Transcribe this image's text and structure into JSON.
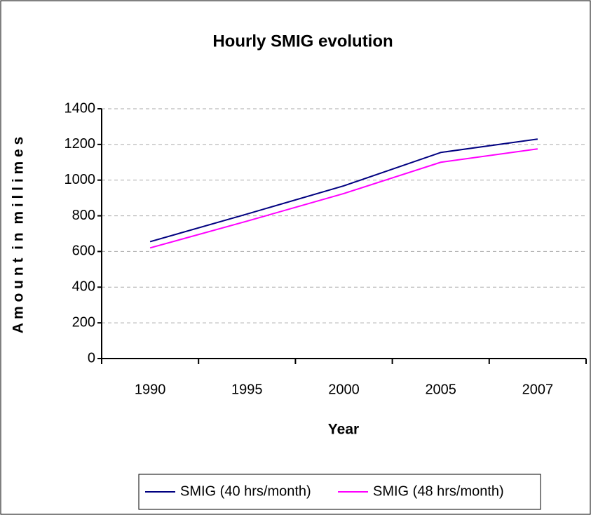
{
  "chart_data": {
    "type": "line",
    "title": "Hourly SMIG evolution",
    "x_label": "Year",
    "y_label": "A m o u n t  i n  m i l l i m e s",
    "categories": [
      "1990",
      "1995",
      "2000",
      "2005",
      "2007"
    ],
    "series": [
      {
        "name": "SMIG (40 hrs/month)",
        "color": "#000080",
        "values": [
          655,
          810,
          968,
          1155,
          1230
        ]
      },
      {
        "name": "SMIG (48 hrs/month)",
        "color": "#ff00ff",
        "values": [
          620,
          770,
          925,
          1100,
          1175
        ]
      }
    ],
    "ylim": [
      0,
      1400
    ],
    "yticks": [
      0,
      200,
      400,
      600,
      800,
      1000,
      1200,
      1400
    ],
    "grid": true,
    "legend": "bottom"
  }
}
